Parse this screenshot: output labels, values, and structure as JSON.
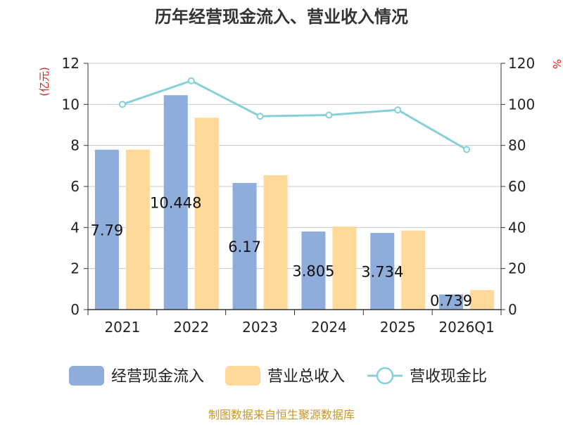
{
  "chart_data": {
    "type": "bar",
    "title": "历年经营现金流入、营业收入情况",
    "ylabel_left": "(亿元)",
    "ylabel_right": "%",
    "categories": [
      "2021",
      "2022",
      "2023",
      "2024",
      "2025",
      "2026Q1"
    ],
    "ylim_left": [
      0,
      12
    ],
    "ylim_right": [
      0,
      120
    ],
    "yticks_left": [
      "0",
      "2",
      "4",
      "6",
      "8",
      "10",
      "12"
    ],
    "yticks_right": [
      "0",
      "20",
      "40",
      "60",
      "80",
      "100",
      "120"
    ],
    "grid": true,
    "legend_position": "bottom",
    "series": [
      {
        "name": "经营现金流入",
        "type": "bar",
        "axis": "left",
        "color": "#8EADDB",
        "values": [
          7.79,
          10.448,
          6.17,
          3.805,
          3.734,
          0.739
        ],
        "labels": [
          "7.79",
          "10.448",
          "6.17",
          "3.805",
          "3.734",
          "0.739"
        ]
      },
      {
        "name": "营业总收入",
        "type": "bar",
        "axis": "left",
        "color": "#FFD99A",
        "values": [
          7.8,
          9.35,
          6.55,
          4.05,
          3.85,
          0.95
        ]
      },
      {
        "name": "营收现金比",
        "type": "line",
        "axis": "right",
        "color": "#86D1D8",
        "values": [
          100,
          111.5,
          94.2,
          94.8,
          97.3,
          78.0
        ]
      }
    ],
    "source": "制图数据来自恒生聚源数据库"
  }
}
